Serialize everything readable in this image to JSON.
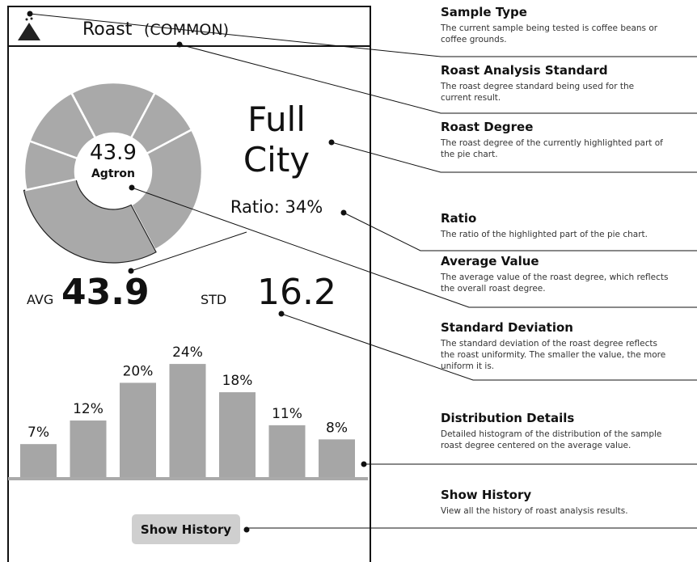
{
  "screen": {
    "header": {
      "title": "Roast",
      "standard": "(COMMON)"
    },
    "center_value": "43.9",
    "center_unit": "Agtron",
    "degree": [
      "Full",
      "City"
    ],
    "ratio": "Ratio: 34%",
    "avg_label": "AVG",
    "avg_value": "43.9",
    "std_label": "STD",
    "std_value": "16.2",
    "histogram": {
      "values": [
        7,
        12,
        20,
        24,
        18,
        11,
        8
      ],
      "value_labels": [
        "7%",
        "12%",
        "20%",
        "24%",
        "18%",
        "11%",
        "8%"
      ],
      "color": "#a6a6a6"
    },
    "button": "Show History"
  },
  "annotations": [
    {
      "title": "Sample Type",
      "description": [
        "The current sample being tested is coffee beans or",
        "coffee grounds."
      ]
    },
    {
      "title": "Roast Analysis Standard",
      "description": [
        "The roast degree standard being used for the",
        "current result."
      ]
    },
    {
      "title": "Roast Degree",
      "description": [
        "The roast degree of the currently highlighted part of",
        "the pie chart."
      ]
    },
    {
      "title": "Ratio",
      "description": [
        "The ratio of the highlighted part of the pie chart."
      ]
    },
    {
      "title": "Average Value",
      "description": [
        "The average value of the roast degree, which reflects",
        "the overall roast degree."
      ]
    },
    {
      "title": "Standard Deviation",
      "description": [
        "The standard deviation of the roast degree reflects",
        "the roast uniformity. The smaller the value, the more",
        "uniform it is."
      ]
    },
    {
      "title": "Distribution Details",
      "description": [
        "Detailed histogram of the distribution of the sample",
        "roast degree centered on the average value."
      ]
    },
    {
      "title": "Show History",
      "description": [
        "View all the history of roast analysis results."
      ]
    }
  ]
}
